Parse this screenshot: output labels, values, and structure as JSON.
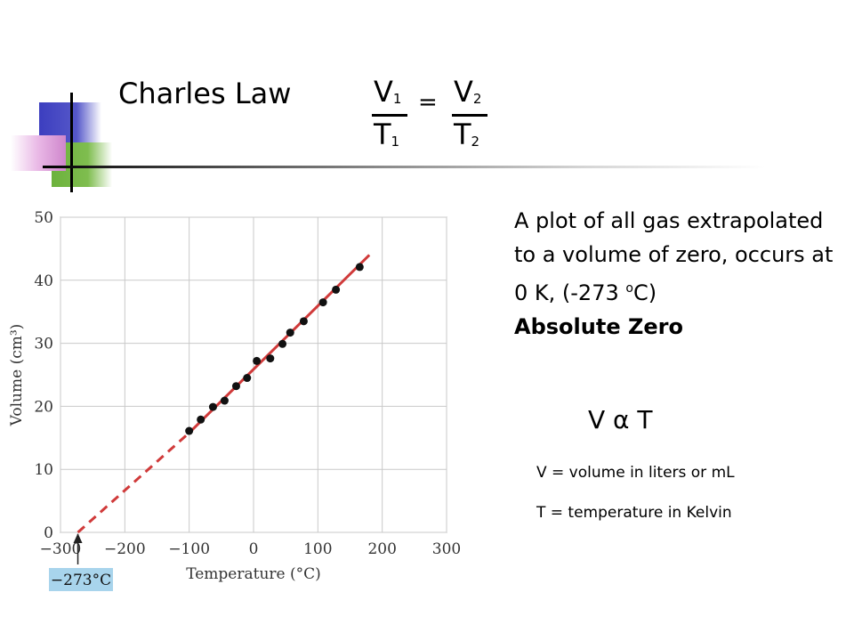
{
  "slide": {
    "title": "Charles Law",
    "equation": {
      "v1": "V",
      "v1_sub": "1",
      "t1": "T",
      "t1_sub": "1",
      "eq": "=",
      "v2": "V",
      "v2_sub": "2",
      "t2": "T",
      "t2_sub": "2"
    },
    "description": "A plot of all gas extrapolated to a volume of zero, occurs at 0 K, (-273 ",
    "description_sup": "o",
    "description_end": "C)",
    "emphasis": "Absolute Zero",
    "proportional": "V α T",
    "definitions": [
      "V = volume in liters or mL",
      "T = temperature in Kelvin"
    ]
  },
  "chart_data": {
    "type": "scatter",
    "xlabel": "Temperature (°C)",
    "ylabel": "Volume (cm³)",
    "xlim": [
      -300,
      300
    ],
    "ylim": [
      0,
      50
    ],
    "xticks": [
      -300,
      -200,
      -100,
      0,
      100,
      200,
      300
    ],
    "xtick_labels": [
      "−300",
      "−200",
      "−100",
      "0",
      "100",
      "200",
      "300"
    ],
    "yticks": [
      0,
      10,
      20,
      30,
      40,
      50
    ],
    "ytick_labels": [
      "0",
      "10",
      "20",
      "30",
      "40",
      "50"
    ],
    "grid": true,
    "points": [
      {
        "x": -100,
        "y": 16.1
      },
      {
        "x": -82,
        "y": 17.9
      },
      {
        "x": -63,
        "y": 19.9
      },
      {
        "x": -45,
        "y": 20.9
      },
      {
        "x": -27,
        "y": 23.2
      },
      {
        "x": -10,
        "y": 24.5
      },
      {
        "x": 5,
        "y": 27.2
      },
      {
        "x": 26,
        "y": 27.6
      },
      {
        "x": 45,
        "y": 29.9
      },
      {
        "x": 57,
        "y": 31.7
      },
      {
        "x": 78,
        "y": 33.5
      },
      {
        "x": 108,
        "y": 36.5
      },
      {
        "x": 128,
        "y": 38.5
      },
      {
        "x": 165,
        "y": 42.1
      }
    ],
    "fit_line": {
      "solid": [
        [
          -100,
          15.8
        ],
        [
          180,
          44.0
        ]
      ],
      "dashed": [
        [
          -273,
          0
        ],
        [
          -100,
          15.8
        ]
      ]
    },
    "annotation": {
      "text": "−273°C",
      "x": -273
    },
    "colors": {
      "fit": "#d03a3a",
      "points": "#111111",
      "grid": "#c9c9c9",
      "annotation_bg": "#a8d4ec"
    }
  }
}
